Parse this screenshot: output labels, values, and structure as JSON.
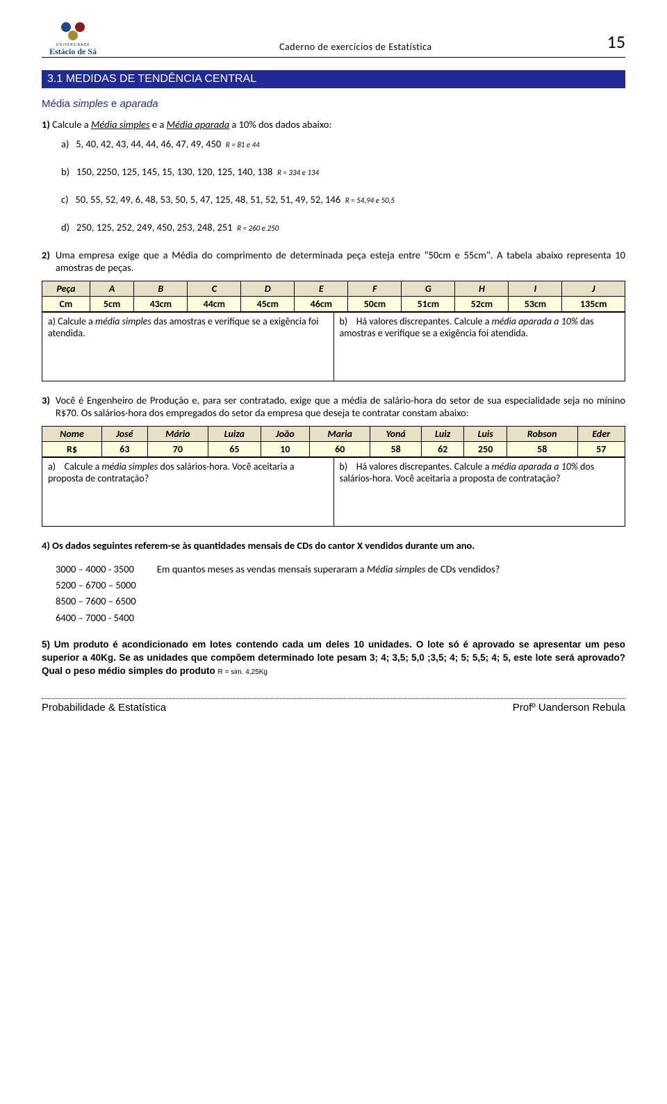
{
  "header": {
    "university_small": "UNIVERSIDADE",
    "university_name": "Estácio de Sá",
    "doc_title": "Caderno de exercícios de Estatística",
    "page_number": "15"
  },
  "section_bar": "3.1 MEDIDAS DE TENDÊNCIA CENTRAL",
  "sub_heading_pre": "Média ",
  "sub_heading_sim": "simples",
  "sub_heading_mid": " e ",
  "sub_heading_ap": "aparada",
  "q1": {
    "number": "1)",
    "text_pre": "Calcule a ",
    "text_ms": "Média simples",
    "text_mid": " e a ",
    "text_ma": "Média aparada",
    "text_post": " a 10% dos dados abaixo:",
    "a": {
      "label": "a)",
      "data": "5, 40, 42, 43, 44, 44, 46, 47, 49, 450",
      "ans": "R = 81 e 44"
    },
    "b": {
      "label": "b)",
      "data": "150, 2250, 125, 145, 15, 130, 120, 125, 140, 138",
      "ans": "R = 334 e 134"
    },
    "c": {
      "label": "c)",
      "data": "50, 55, 52, 49, 6, 48, 53, 50, 5, 47, 125, 48, 51, 52, 51, 49, 52, 146",
      "ans": "R = 54,94 e 50,5"
    },
    "d": {
      "label": "d)",
      "data": "250, 125, 252, 249, 450, 253, 248, 251",
      "ans": "R = 260 e 250"
    }
  },
  "q2": {
    "number": "2)",
    "text": "Uma empresa exige que a Média do comprimento de determinada peça esteja entre \"50cm e 55cm\". A tabela abaixo representa 10 amostras de peças.",
    "headers": [
      "Peça",
      "A",
      "B",
      "C",
      "D",
      "E",
      "F",
      "G",
      "H",
      "I",
      "J"
    ],
    "row_label": "Cm",
    "values": [
      "5cm",
      "43cm",
      "44cm",
      "45cm",
      "46cm",
      "50cm",
      "51cm",
      "52cm",
      "53cm",
      "135cm"
    ],
    "cell_a_pre": "a) Calcule a ",
    "cell_a_it": "média simples",
    "cell_a_post": " das amostras e verifique se a exigência foi atendida.",
    "cell_b_lab": "b)",
    "cell_b_pre": "Há valores discrepantes. Calcule a ",
    "cell_b_it": "média aparada a 10%",
    "cell_b_post": " das amostras e verifique se a exigência foi atendida."
  },
  "q3": {
    "number": "3)",
    "text": "Você é Engenheiro de Produção e, para ser contratado, exige que a média de salário-hora do setor de sua especialidade seja no mínino R$70. Os salários-hora dos empregados do setor da empresa que deseja te contratar constam abaixo:",
    "headers": [
      "Nome",
      "José",
      "Mário",
      "Luiza",
      "João",
      "Maria",
      "Yoná",
      "Luiz",
      "Luis",
      "Robson",
      "Eder"
    ],
    "row_label": "R$",
    "values": [
      "63",
      "70",
      "65",
      "10",
      "60",
      "58",
      "62",
      "250",
      "58",
      "57"
    ],
    "cell_a_lab": "a)",
    "cell_a_pre": "Calcule a ",
    "cell_a_it": "média simples",
    "cell_a_post": " dos salários-hora. Você aceitaria a proposta de contratação?",
    "cell_b_lab": "b)",
    "cell_b_pre": "Há valores discrepantes. Calcule a ",
    "cell_b_it": "média aparada a 10%",
    "cell_b_post": " dos salários-hora. Você aceitaria a proposta de contratação?"
  },
  "q4": {
    "number_text": "4) Os dados seguintes referem-se às quantidades mensais de CDs do cantor X vendidos durante um ano.",
    "col": [
      "3000 – 4000 - 3500",
      "5200 – 6700 – 5000",
      "8500 – 7600 – 6500",
      "6400 – 7000 - 5400"
    ],
    "question_pre": "Em quantos meses as vendas mensais superaram a ",
    "question_it": "Média simples",
    "question_post": " de CDs vendidos?"
  },
  "q5": {
    "number": "5)",
    "text": " Um produto é acondicionado em lotes contendo cada um deles 10 unidades. O lote só é aprovado se apresentar um peso superior a 40Kg.  Se as unidades que compõem determinado lote pesam 3; 4; 3,5; 5,0 ;3,5; 4; 5; 5,5; 4; 5, este lote será aprovado? Qual o peso médio simples do produto ",
    "ans": "R = sim. 4,25Kg"
  },
  "footer": {
    "left": "Probabilidade & Estatística",
    "right": "Profº Uanderson Rebula"
  }
}
